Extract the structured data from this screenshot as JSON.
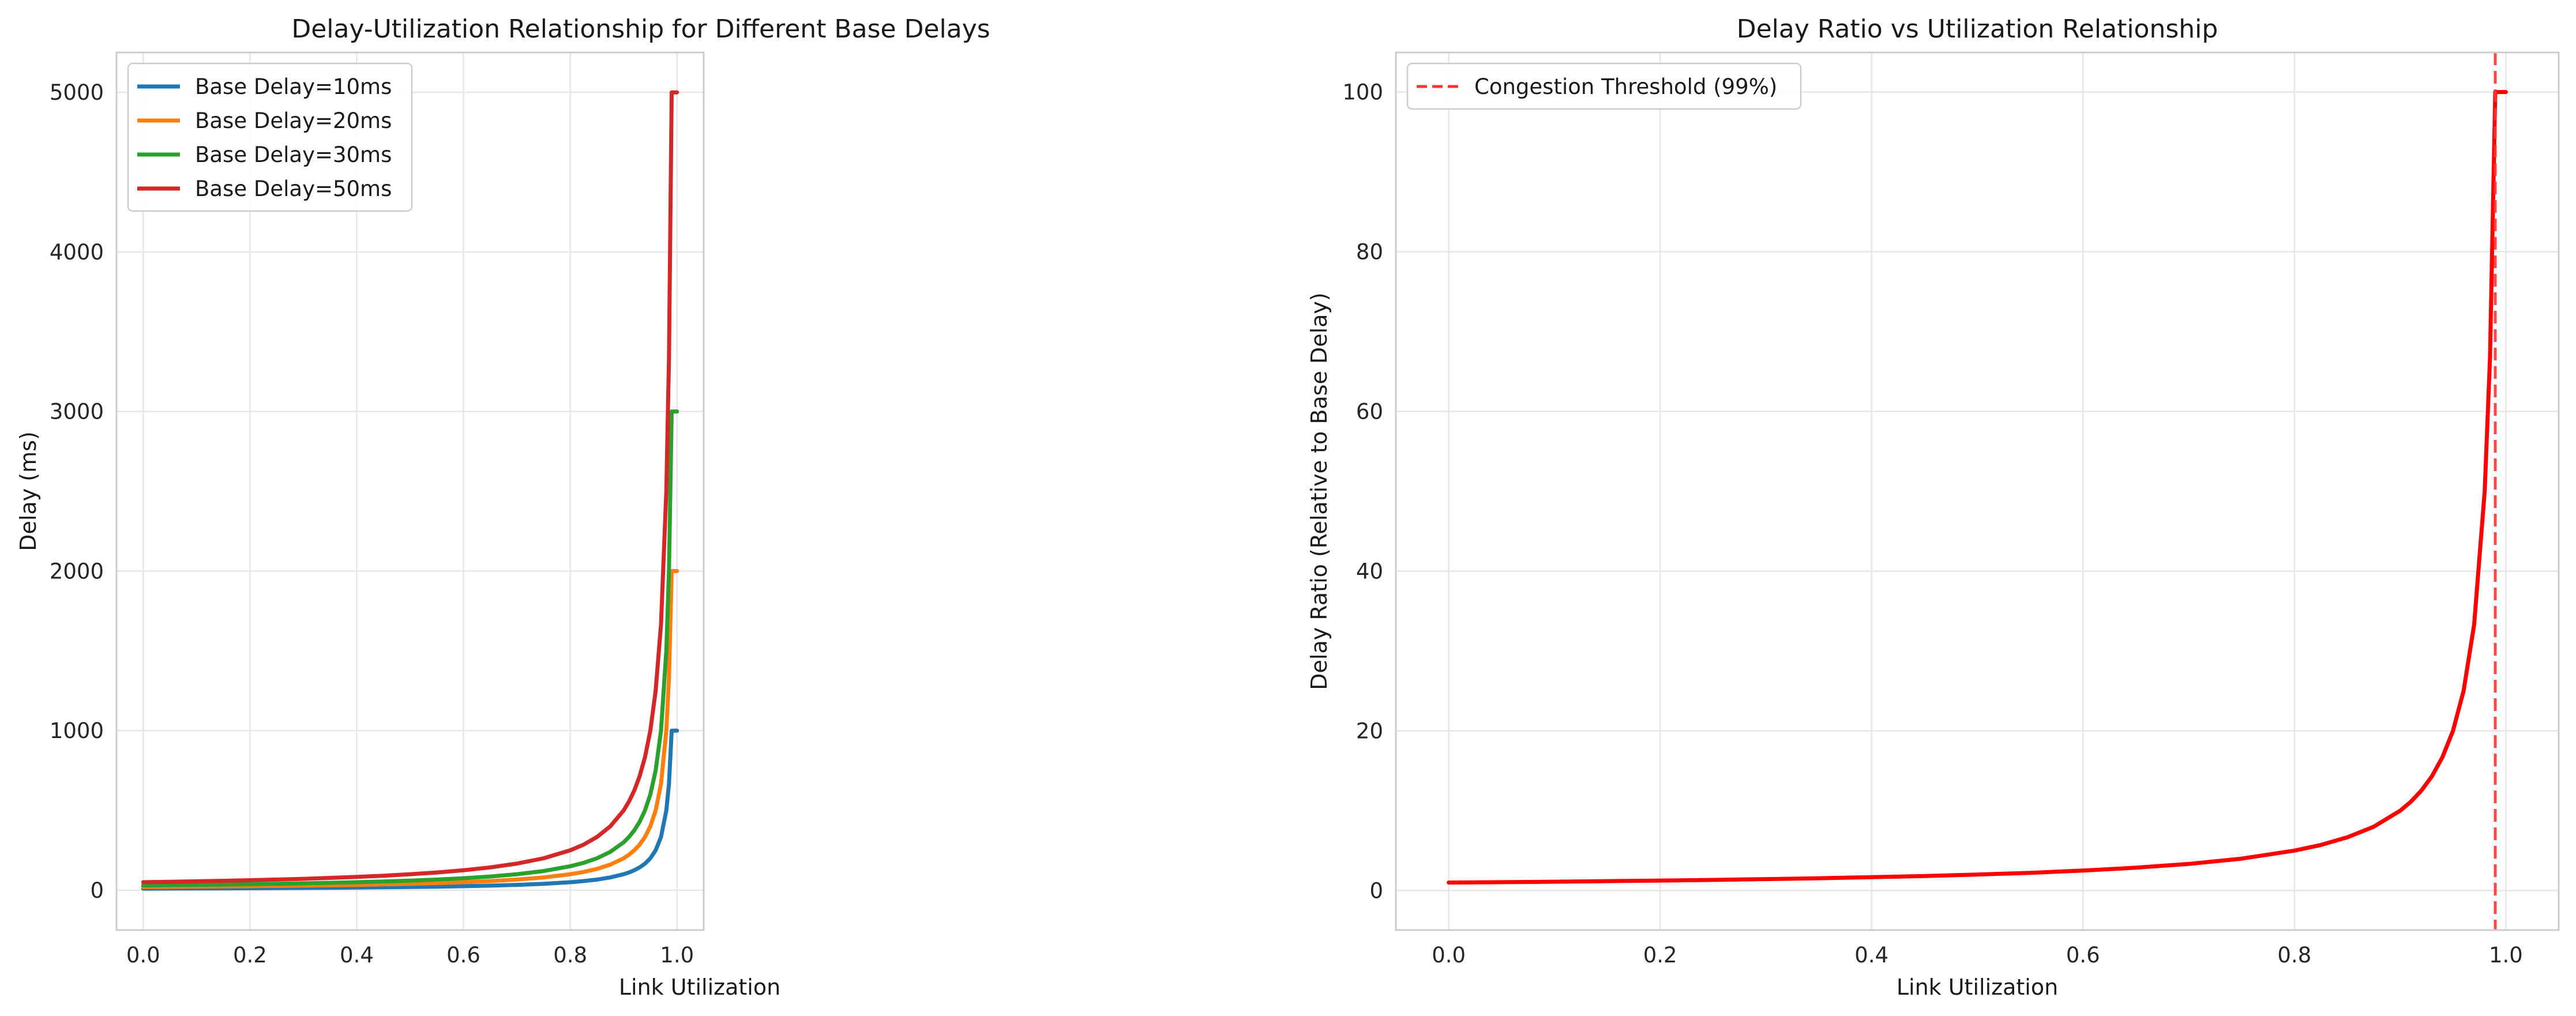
{
  "chart_data": [
    {
      "type": "line",
      "title": "Delay-Utilization Relationship for Different Base Delays",
      "xlabel": "Link Utilization",
      "ylabel": "Delay (ms)",
      "xlim": [
        -0.05,
        1.05
      ],
      "ylim": [
        -250,
        5250
      ],
      "xticks": [
        0.0,
        0.2,
        0.4,
        0.6,
        0.8,
        1.0
      ],
      "xtick_labels": [
        "0.0",
        "0.2",
        "0.4",
        "0.6",
        "0.8",
        "1.0"
      ],
      "yticks": [
        0,
        1000,
        2000,
        3000,
        4000,
        5000
      ],
      "ytick_labels": [
        "0",
        "1000",
        "2000",
        "3000",
        "4000",
        "5000"
      ],
      "grid": true,
      "legend_position": "top-left",
      "formula": "delay = base / (1 - utilization), utilization capped at 0.99",
      "x": [
        0.0,
        0.05,
        0.1,
        0.15,
        0.2,
        0.25,
        0.3,
        0.35,
        0.4,
        0.45,
        0.5,
        0.55,
        0.6,
        0.65,
        0.7,
        0.75,
        0.8,
        0.825,
        0.85,
        0.875,
        0.9,
        0.91,
        0.92,
        0.93,
        0.94,
        0.95,
        0.96,
        0.97,
        0.98,
        0.985,
        0.99,
        1.0
      ],
      "series": [
        {
          "name": "Base Delay=10ms",
          "color": "#1f77b4",
          "values": [
            10,
            10.5,
            11.1,
            11.8,
            12.5,
            13.3,
            14.3,
            15.4,
            16.7,
            18.2,
            20,
            22.2,
            25,
            28.6,
            33.3,
            40,
            50,
            57.1,
            66.7,
            80,
            100,
            111.1,
            125,
            142.9,
            166.7,
            200,
            250,
            333.3,
            500,
            666.7,
            1000,
            1000
          ]
        },
        {
          "name": "Base Delay=20ms",
          "color": "#ff7f0e",
          "values": [
            20,
            21.1,
            22.2,
            23.5,
            25,
            26.7,
            28.6,
            30.8,
            33.3,
            36.4,
            40,
            44.4,
            50,
            57.1,
            66.7,
            80,
            100,
            114.3,
            133.3,
            160,
            200,
            222.2,
            250,
            285.7,
            333.3,
            400,
            500,
            666.7,
            1000,
            1333.3,
            2000,
            2000
          ]
        },
        {
          "name": "Base Delay=30ms",
          "color": "#2ca02c",
          "values": [
            30,
            31.6,
            33.3,
            35.3,
            37.5,
            40,
            42.9,
            46.2,
            50,
            54.5,
            60,
            66.7,
            75,
            85.7,
            100,
            120,
            150,
            171.4,
            200,
            240,
            300,
            333.3,
            375,
            428.6,
            500,
            600,
            750,
            1000,
            1500,
            2000,
            3000,
            3000
          ]
        },
        {
          "name": "Base Delay=50ms",
          "color": "#d62728",
          "values": [
            50,
            52.6,
            55.6,
            58.8,
            62.5,
            66.7,
            71.4,
            76.9,
            83.3,
            90.9,
            100,
            111.1,
            125,
            142.9,
            166.7,
            200,
            250,
            285.7,
            333.3,
            400,
            500,
            555.6,
            625,
            714.3,
            833.3,
            1000,
            1250,
            1666.7,
            2500,
            3333.3,
            5000,
            5000
          ]
        }
      ]
    },
    {
      "type": "line",
      "title": "Delay Ratio vs Utilization Relationship",
      "xlabel": "Link Utilization",
      "ylabel": "Delay Ratio (Relative to Base Delay)",
      "xlim": [
        -0.05,
        1.05
      ],
      "ylim": [
        -4.95,
        104.95
      ],
      "xticks": [
        0.0,
        0.2,
        0.4,
        0.6,
        0.8,
        1.0
      ],
      "xtick_labels": [
        "0.0",
        "0.2",
        "0.4",
        "0.6",
        "0.8",
        "1.0"
      ],
      "yticks": [
        0,
        20,
        40,
        60,
        80,
        100
      ],
      "ytick_labels": [
        "0",
        "20",
        "40",
        "60",
        "80",
        "100"
      ],
      "grid": true,
      "legend_position": "top-left",
      "x": [
        0.0,
        0.05,
        0.1,
        0.15,
        0.2,
        0.25,
        0.3,
        0.35,
        0.4,
        0.45,
        0.5,
        0.55,
        0.6,
        0.65,
        0.7,
        0.75,
        0.8,
        0.825,
        0.85,
        0.875,
        0.9,
        0.91,
        0.92,
        0.93,
        0.94,
        0.95,
        0.96,
        0.97,
        0.98,
        0.985,
        0.99,
        1.0
      ],
      "series": [
        {
          "name": "",
          "color": "#ff0000",
          "values": [
            1,
            1.05,
            1.11,
            1.18,
            1.25,
            1.33,
            1.43,
            1.54,
            1.67,
            1.82,
            2,
            2.22,
            2.5,
            2.86,
            3.33,
            4,
            5,
            5.71,
            6.67,
            8,
            10,
            11.1,
            12.5,
            14.3,
            16.7,
            20,
            25,
            33.3,
            50,
            66.7,
            100,
            100
          ]
        }
      ],
      "reference_line": {
        "orientation": "vertical",
        "x": 0.99,
        "label": "Congestion Threshold (99%)",
        "color": "#ff3333",
        "style": "dashed"
      }
    }
  ]
}
